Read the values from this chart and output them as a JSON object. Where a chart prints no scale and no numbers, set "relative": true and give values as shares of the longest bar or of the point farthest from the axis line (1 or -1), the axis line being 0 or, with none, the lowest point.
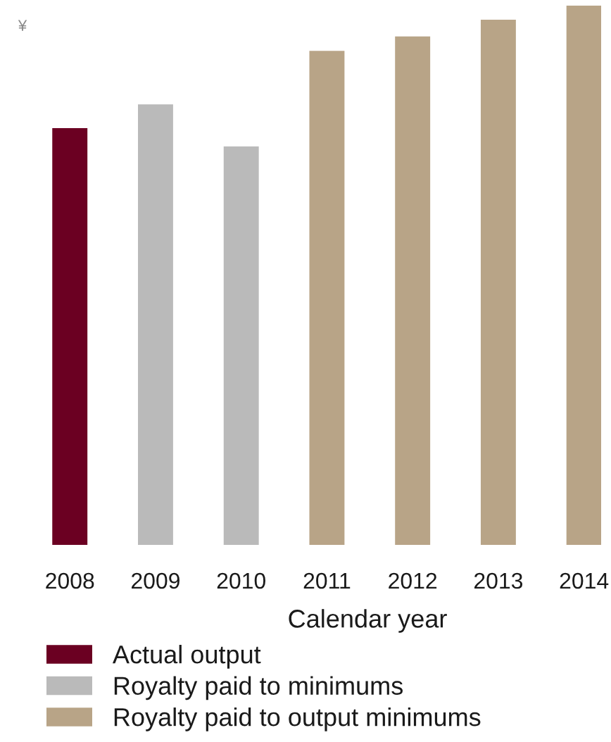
{
  "chart_data": {
    "type": "bar",
    "relative": true,
    "ylabel": "¥",
    "xlabel": "Calendar year",
    "categories": [
      "2008",
      "2009",
      "2010",
      "2011",
      "2012",
      "2013",
      "2014"
    ],
    "series": [
      {
        "name": "Actual output",
        "color": "#6b0022",
        "values": [
          0.773,
          null,
          null,
          null,
          null,
          null,
          null
        ]
      },
      {
        "name": "Royalty paid to minimums",
        "color": "#bababa",
        "values": [
          null,
          0.817,
          0.739,
          null,
          null,
          null,
          null
        ]
      },
      {
        "name": "Royalty paid to output minimums",
        "color": "#b8a487",
        "values": [
          null,
          null,
          null,
          0.916,
          0.943,
          0.974,
          1
        ]
      }
    ],
    "grid": false,
    "legend": "bottom left"
  }
}
